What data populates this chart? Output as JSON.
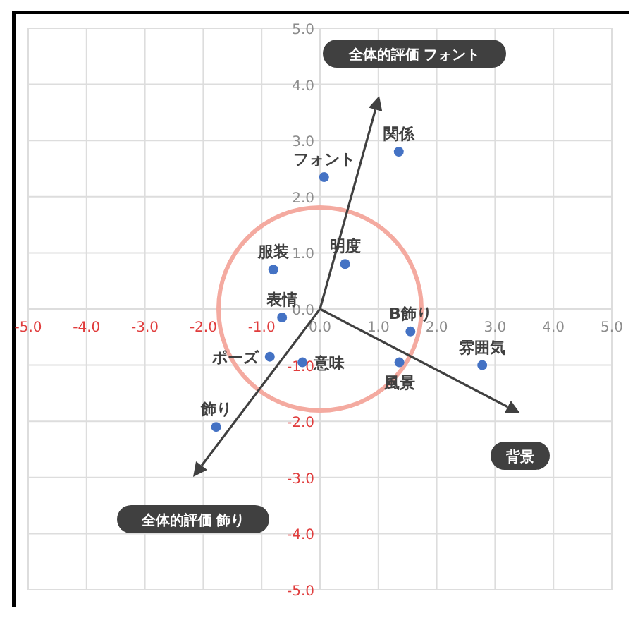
{
  "chart_data": {
    "type": "scatter",
    "xlim": [
      -5,
      5
    ],
    "ylim": [
      -5,
      5
    ],
    "xticks": [
      {
        "value": -5,
        "label": "-5.0"
      },
      {
        "value": -4,
        "label": "-4.0"
      },
      {
        "value": -3,
        "label": "-3.0"
      },
      {
        "value": -2,
        "label": "-2.0"
      },
      {
        "value": -1,
        "label": "-1.0"
      },
      {
        "value": 0,
        "label": "0.0"
      },
      {
        "value": 1,
        "label": "1.0"
      },
      {
        "value": 2,
        "label": "2.0"
      },
      {
        "value": 3,
        "label": "3.0"
      },
      {
        "value": 4,
        "label": "4.0"
      },
      {
        "value": 5,
        "label": "5.0"
      }
    ],
    "yticks": [
      {
        "value": -5,
        "label": "-5.0"
      },
      {
        "value": -4,
        "label": "-4.0"
      },
      {
        "value": -3,
        "label": "-3.0"
      },
      {
        "value": -2,
        "label": "-2.0"
      },
      {
        "value": -1,
        "label": "-1.0"
      },
      {
        "value": 0,
        "label": "0.0"
      },
      {
        "value": 1,
        "label": "1.0"
      },
      {
        "value": 2,
        "label": "2.0"
      },
      {
        "value": 3,
        "label": "3.0"
      },
      {
        "value": 4,
        "label": "4.0"
      },
      {
        "value": 5,
        "label": "5.0"
      }
    ],
    "grid": true,
    "marker": "circle",
    "series": [
      {
        "name": "関係",
        "color": "#4472c4",
        "x": [
          1.35
        ],
        "values": [
          2.8
        ]
      },
      {
        "name": "フォント",
        "color": "#4472c4",
        "x": [
          0.07
        ],
        "values": [
          2.35
        ]
      },
      {
        "name": "服装",
        "color": "#4472c4",
        "x": [
          -0.8
        ],
        "values": [
          0.7
        ]
      },
      {
        "name": "明度",
        "color": "#4472c4",
        "x": [
          0.43
        ],
        "values": [
          0.8
        ]
      },
      {
        "name": "表情",
        "color": "#4472c4",
        "x": [
          -0.65
        ],
        "values": [
          -0.15
        ]
      },
      {
        "name": "B飾り",
        "color": "#4472c4",
        "x": [
          1.55
        ],
        "values": [
          -0.4
        ]
      },
      {
        "name": "ポーズ",
        "color": "#4472c4",
        "x": [
          -0.86
        ],
        "values": [
          -0.85
        ]
      },
      {
        "name": "意味",
        "color": "#4472c4",
        "x": [
          -0.3
        ],
        "values": [
          -0.95
        ]
      },
      {
        "name": "風景",
        "color": "#4472c4",
        "x": [
          1.36
        ],
        "values": [
          -0.95
        ]
      },
      {
        "name": "雰囲気",
        "color": "#4472c4",
        "x": [
          2.78
        ],
        "values": [
          -1.0
        ]
      },
      {
        "name": "飾り",
        "color": "#4472c4",
        "x": [
          -1.78
        ],
        "values": [
          -2.1
        ]
      }
    ],
    "annotations": [
      "全体的評価 フォント",
      "背景",
      "全体的評価 飾り"
    ]
  }
}
